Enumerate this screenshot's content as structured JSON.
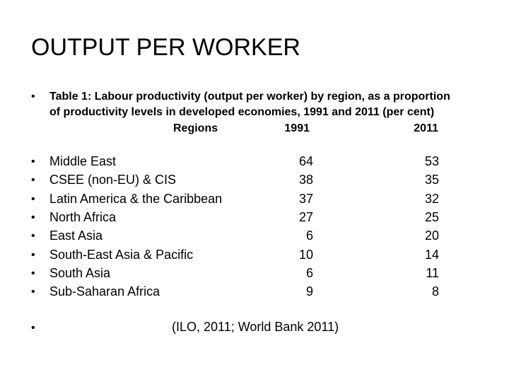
{
  "title": "OUTPUT PER WORKER",
  "intro": "Table 1: Labour productivity (output per worker) by region, as a proportion of productivity levels in developed economies, 1991 and 2011 (per cent)",
  "table": {
    "header": [
      "Regions",
      "1991",
      "2011"
    ],
    "rows": [
      [
        "Middle East",
        64,
        53
      ],
      [
        "CSEE (non-EU) & CIS",
        38,
        35
      ],
      [
        "Latin America & the Caribbean",
        37,
        32
      ],
      [
        "North Africa",
        27,
        25
      ],
      [
        "East Asia",
        6,
        20
      ],
      [
        "South-East Asia & Pacific",
        10,
        14
      ],
      [
        "South Asia",
        6,
        11
      ],
      [
        "Sub-Saharan Africa",
        9,
        8
      ]
    ]
  },
  "source": "(ILO, 2011; World Bank 2011)"
}
